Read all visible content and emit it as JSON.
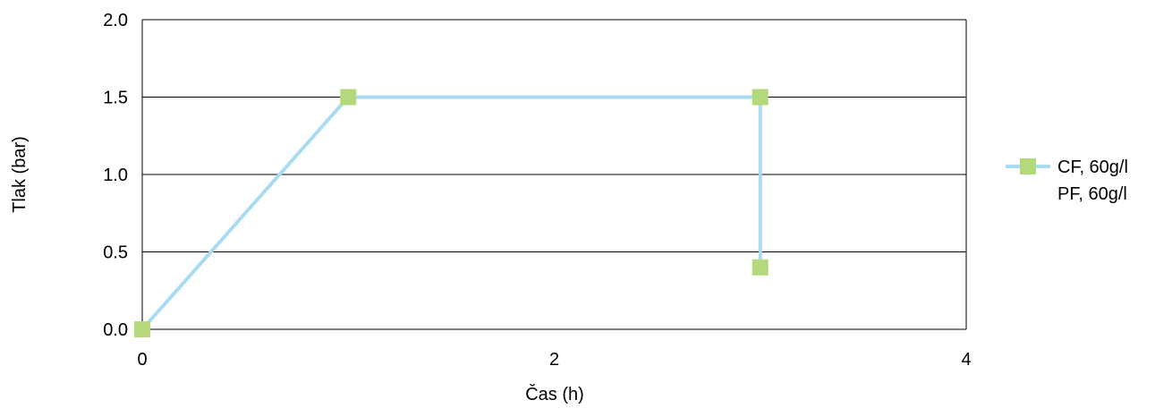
{
  "chart_data": {
    "type": "line",
    "title": "",
    "xlabel": "Čas (h)",
    "ylabel": "Tlak (bar)",
    "xlim": [
      0,
      4
    ],
    "ylim": [
      0,
      2
    ],
    "x_ticks": [
      "0",
      "2",
      "4"
    ],
    "y_ticks": [
      "0.0",
      "0.5",
      "1.0",
      "1.5",
      "2.0"
    ],
    "grid": "horizontal",
    "legend_position": "right",
    "series": [
      {
        "name": "CF, 60g/l",
        "line_color": "#a9dcf2",
        "marker_color": "#b3d97c",
        "marker": "square",
        "points": [
          {
            "x": 0,
            "y": 0
          },
          {
            "x": 1,
            "y": 1.5
          },
          {
            "x": 3,
            "y": 1.5
          },
          {
            "x": 3,
            "y": 0.4
          }
        ]
      },
      {
        "name": "PF, 60g/l",
        "points": []
      }
    ]
  }
}
